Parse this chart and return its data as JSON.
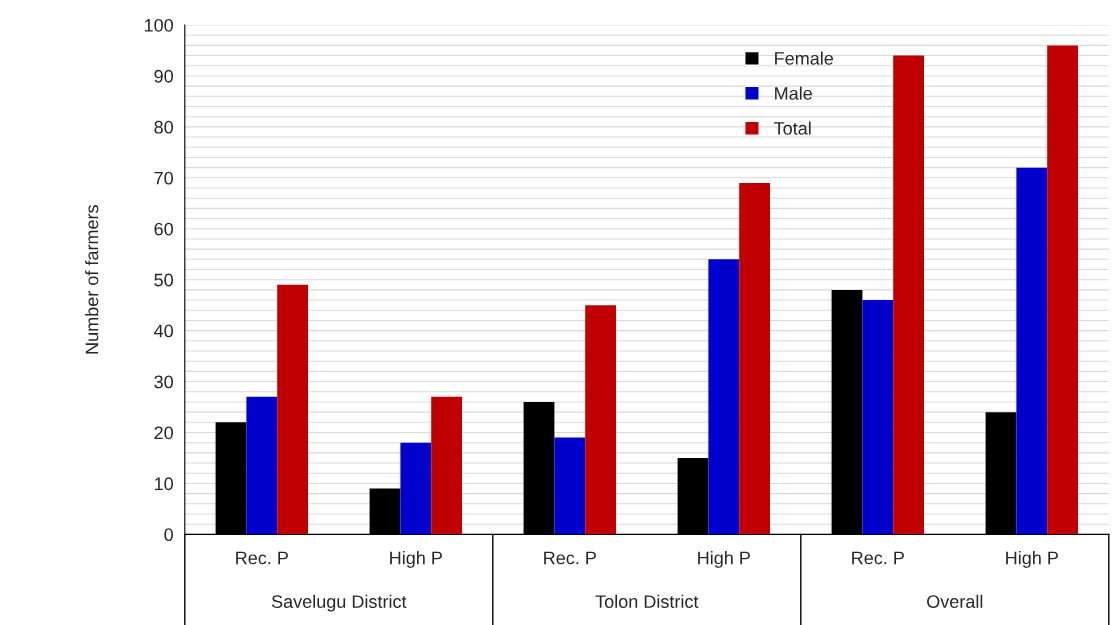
{
  "chart_data": {
    "type": "bar",
    "ylabel": "Number of farmers",
    "categories": [
      "Rec. P",
      "High P",
      "Rec. P",
      "High P",
      "Rec. P",
      "High P"
    ],
    "annotations": [
      "Savelugu District",
      "Tolon District",
      "Overall"
    ],
    "series": [
      {
        "name": "Female",
        "color": "#000000",
        "values": [
          22,
          9,
          26,
          15,
          48,
          24
        ]
      },
      {
        "name": "Male",
        "color": "#0000cc",
        "values": [
          27,
          18,
          19,
          54,
          46,
          72
        ]
      },
      {
        "name": "Total",
        "color": "#c00000",
        "values": [
          49,
          27,
          45,
          69,
          94,
          96
        ]
      }
    ],
    "ylim": [
      0,
      100
    ],
    "yticks": [
      0,
      {
        "value": 2,
        "label": null
      },
      {
        "value": 4,
        "label": null
      },
      {
        "value": 6,
        "label": null
      },
      {
        "value": 8,
        "label": null
      },
      10,
      {
        "value": 12,
        "label": null
      },
      {
        "value": 14,
        "label": null
      },
      {
        "value": 16,
        "label": null
      },
      {
        "value": 18,
        "label": null
      },
      20,
      {
        "value": 22,
        "label": null
      },
      {
        "value": 24,
        "label": null
      },
      {
        "value": 26,
        "label": null
      },
      {
        "value": 28,
        "label": null
      },
      30,
      {
        "value": 32,
        "label": null
      },
      {
        "value": 34,
        "label": null
      },
      {
        "value": 36,
        "label": null
      },
      {
        "value": 38,
        "label": null
      },
      40,
      {
        "value": 42,
        "label": null
      },
      {
        "value": 44,
        "label": null
      },
      {
        "value": 46,
        "label": null
      },
      {
        "value": 48,
        "label": null
      },
      50,
      {
        "value": 52,
        "label": null
      },
      {
        "value": 54,
        "label": null
      },
      {
        "value": 56,
        "label": null
      },
      {
        "value": 58,
        "label": null
      },
      60,
      {
        "value": 62,
        "label": null
      },
      {
        "value": 64,
        "label": null
      },
      {
        "value": 66,
        "label": null
      },
      {
        "value": 68,
        "label": null
      },
      70,
      {
        "value": 72,
        "label": null
      },
      {
        "value": 74,
        "label": null
      },
      {
        "value": 76,
        "label": null
      },
      {
        "value": 78,
        "label": null
      },
      80,
      {
        "value": 82,
        "label": null
      },
      {
        "value": 84,
        "label": null
      },
      {
        "value": 86,
        "label": null
      },
      {
        "value": 88,
        "label": null
      },
      90,
      {
        "value": 92,
        "label": null
      },
      {
        "value": 94,
        "label": null
      },
      {
        "value": 96,
        "label": null
      },
      {
        "value": 98,
        "label": null
      },
      100
    ],
    "grid": "y",
    "legend": "top right"
  }
}
